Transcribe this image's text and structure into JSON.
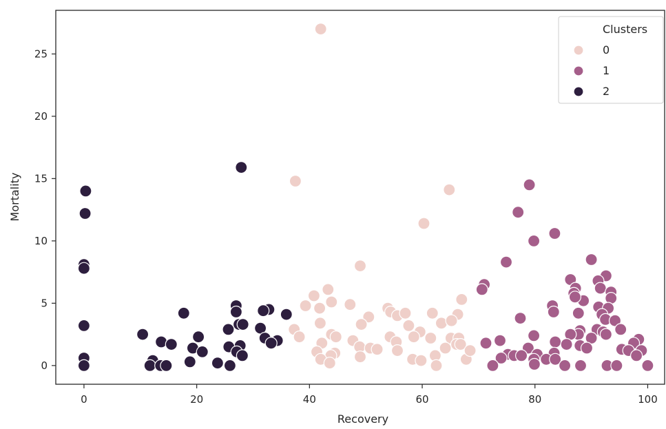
{
  "chart_data": {
    "type": "scatter",
    "xlabel": "Recovery",
    "ylabel": "Mortality",
    "xlim": [
      -5,
      103
    ],
    "ylim": [
      -1.5,
      28.5
    ],
    "xticks": [
      0,
      20,
      40,
      60,
      80,
      100
    ],
    "yticks": [
      0,
      5,
      10,
      15,
      20,
      25
    ],
    "grid": false,
    "legend": {
      "title": "Clusters",
      "placement": "top-right"
    },
    "series": [
      {
        "name": "0",
        "color": "#efcfc9",
        "points": [
          [
            42.0,
            27.0
          ],
          [
            37.5,
            14.8
          ],
          [
            64.8,
            14.1
          ],
          [
            60.3,
            11.4
          ],
          [
            49.0,
            8.0
          ],
          [
            43.3,
            6.1
          ],
          [
            40.8,
            5.6
          ],
          [
            67.0,
            5.3
          ],
          [
            43.9,
            5.1
          ],
          [
            47.2,
            4.9
          ],
          [
            39.3,
            4.8
          ],
          [
            41.8,
            4.6
          ],
          [
            53.9,
            4.6
          ],
          [
            54.4,
            4.3
          ],
          [
            55.6,
            4.0
          ],
          [
            57.0,
            4.2
          ],
          [
            50.5,
            3.9
          ],
          [
            61.8,
            4.2
          ],
          [
            66.3,
            4.1
          ],
          [
            49.2,
            3.3
          ],
          [
            57.6,
            3.2
          ],
          [
            41.9,
            3.4
          ],
          [
            63.4,
            3.4
          ],
          [
            65.2,
            3.6
          ],
          [
            37.3,
            2.9
          ],
          [
            59.6,
            2.7
          ],
          [
            38.2,
            2.3
          ],
          [
            43.9,
            2.5
          ],
          [
            44.7,
            2.3
          ],
          [
            54.3,
            2.3
          ],
          [
            58.5,
            2.3
          ],
          [
            61.5,
            2.2
          ],
          [
            47.7,
            2.0
          ],
          [
            55.4,
            1.9
          ],
          [
            65.1,
            2.2
          ],
          [
            66.5,
            2.2
          ],
          [
            66.1,
            1.7
          ],
          [
            42.2,
            1.8
          ],
          [
            48.9,
            1.5
          ],
          [
            50.8,
            1.4
          ],
          [
            52.0,
            1.3
          ],
          [
            55.6,
            1.2
          ],
          [
            64.1,
            1.4
          ],
          [
            66.8,
            1.7
          ],
          [
            41.3,
            1.1
          ],
          [
            44.5,
            1.0
          ],
          [
            43.8,
            0.8
          ],
          [
            49.0,
            0.7
          ],
          [
            62.3,
            0.8
          ],
          [
            42.0,
            0.5
          ],
          [
            43.6,
            0.2
          ],
          [
            58.3,
            0.5
          ],
          [
            67.8,
            0.5
          ],
          [
            68.5,
            1.2
          ],
          [
            62.5,
            0.0
          ],
          [
            59.8,
            0.4
          ]
        ]
      },
      {
        "name": "1",
        "color": "#a55e8a",
        "points": [
          [
            79.0,
            14.5
          ],
          [
            77.0,
            12.3
          ],
          [
            83.5,
            10.6
          ],
          [
            79.8,
            10.0
          ],
          [
            90.0,
            8.5
          ],
          [
            74.9,
            8.3
          ],
          [
            92.6,
            7.2
          ],
          [
            86.3,
            6.9
          ],
          [
            91.2,
            6.8
          ],
          [
            71.0,
            6.5
          ],
          [
            70.6,
            6.1
          ],
          [
            87.2,
            6.2
          ],
          [
            91.6,
            6.2
          ],
          [
            86.9,
            5.8
          ],
          [
            93.5,
            5.9
          ],
          [
            88.6,
            5.2
          ],
          [
            87.1,
            5.5
          ],
          [
            93.5,
            5.4
          ],
          [
            83.1,
            4.8
          ],
          [
            91.3,
            4.7
          ],
          [
            93.0,
            4.6
          ],
          [
            83.3,
            4.3
          ],
          [
            87.7,
            4.2
          ],
          [
            91.9,
            4.1
          ],
          [
            77.4,
            3.8
          ],
          [
            92.5,
            3.7
          ],
          [
            94.2,
            3.6
          ],
          [
            95.2,
            2.9
          ],
          [
            91.0,
            2.9
          ],
          [
            92.1,
            2.7
          ],
          [
            88.0,
            2.8
          ],
          [
            87.7,
            2.5
          ],
          [
            86.3,
            2.5
          ],
          [
            79.8,
            2.4
          ],
          [
            92.6,
            2.5
          ],
          [
            90.0,
            2.2
          ],
          [
            98.4,
            2.1
          ],
          [
            97.5,
            1.8
          ],
          [
            73.8,
            2.0
          ],
          [
            83.6,
            1.9
          ],
          [
            71.3,
            1.8
          ],
          [
            85.6,
            1.7
          ],
          [
            88.0,
            1.6
          ],
          [
            89.2,
            1.4
          ],
          [
            95.4,
            1.3
          ],
          [
            96.6,
            1.2
          ],
          [
            98.9,
            1.2
          ],
          [
            78.8,
            1.4
          ],
          [
            83.4,
            1.0
          ],
          [
            75.2,
            0.9
          ],
          [
            76.3,
            0.8
          ],
          [
            77.6,
            0.8
          ],
          [
            80.4,
            0.9
          ],
          [
            98.0,
            0.8
          ],
          [
            74.0,
            0.6
          ],
          [
            79.8,
            0.5
          ],
          [
            82.0,
            0.5
          ],
          [
            83.6,
            0.5
          ],
          [
            72.5,
            0.0
          ],
          [
            79.9,
            0.1
          ],
          [
            85.3,
            0.0
          ],
          [
            88.1,
            0.0
          ],
          [
            92.8,
            0.0
          ],
          [
            94.5,
            0.0
          ],
          [
            100.0,
            0.0
          ]
        ]
      },
      {
        "name": "2",
        "color": "#2d1e3e",
        "points": [
          [
            27.9,
            15.9
          ],
          [
            0.3,
            14.0
          ],
          [
            0.2,
            12.2
          ],
          [
            0.0,
            8.1
          ],
          [
            0.0,
            7.8
          ],
          [
            27.0,
            4.8
          ],
          [
            32.8,
            4.5
          ],
          [
            31.8,
            4.4
          ],
          [
            27.0,
            4.3
          ],
          [
            17.7,
            4.2
          ],
          [
            35.9,
            4.1
          ],
          [
            27.5,
            3.3
          ],
          [
            28.2,
            3.3
          ],
          [
            25.6,
            2.9
          ],
          [
            31.3,
            3.0
          ],
          [
            0.0,
            3.2
          ],
          [
            10.4,
            2.5
          ],
          [
            20.3,
            2.3
          ],
          [
            32.1,
            2.2
          ],
          [
            34.3,
            2.0
          ],
          [
            13.7,
            1.9
          ],
          [
            33.2,
            1.8
          ],
          [
            15.5,
            1.7
          ],
          [
            27.7,
            1.6
          ],
          [
            25.7,
            1.5
          ],
          [
            19.3,
            1.4
          ],
          [
            21.0,
            1.1
          ],
          [
            27.1,
            1.1
          ],
          [
            28.1,
            0.8
          ],
          [
            0.0,
            0.6
          ],
          [
            12.2,
            0.4
          ],
          [
            18.8,
            0.3
          ],
          [
            23.7,
            0.2
          ],
          [
            11.7,
            0.0
          ],
          [
            13.6,
            0.0
          ],
          [
            14.6,
            0.0
          ],
          [
            25.9,
            0.0
          ],
          [
            0.0,
            0.0
          ]
        ]
      }
    ]
  }
}
